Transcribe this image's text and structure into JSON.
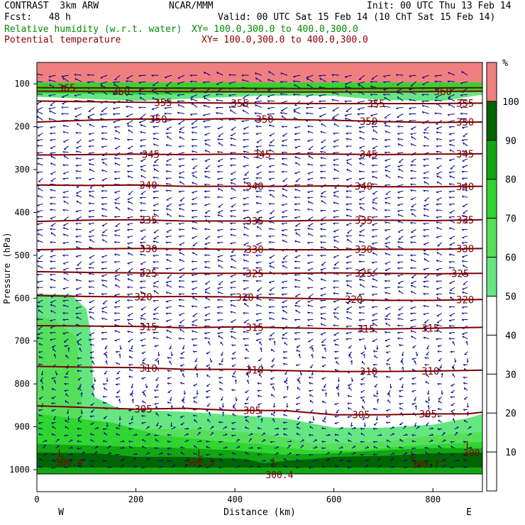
{
  "header": {
    "model": "CONTRAST  3km ARW",
    "org": "NCAR/MMM",
    "init": "Init: 00 UTC Thu 13 Feb 14",
    "fcst": "Fcst:   48 h",
    "valid": "Valid: 00 UTC Sat 15 Feb 14 (10 ChT Sat 15 Feb 14)",
    "rh_label": "Relative humidity (w.r.t. water)",
    "rh_xy": "XY= 100.0,300.0 to 400.0,300.0",
    "theta_label": "Potential temperature",
    "theta_xy": "XY= 100.0,300.0 to 400.0,300.0"
  },
  "colors": {
    "rh_label": "#008c00",
    "theta_label": "#8b0000",
    "theta_line": "#7a0000",
    "wind_arrow": "#00008b"
  },
  "chart_data": {
    "type": "cross-section",
    "xlabel": "Distance (km)",
    "ylabel": "Pressure (hPa)",
    "xlim": [
      0,
      900
    ],
    "ylim": [
      1010,
      50
    ],
    "x_ticks": [
      0,
      200,
      400,
      600,
      800
    ],
    "y_ticks": [
      100,
      200,
      300,
      400,
      500,
      600,
      700,
      800,
      900,
      1000
    ],
    "x_end_labels": {
      "left": "W",
      "right": "E"
    },
    "colorbar": {
      "unit": "%",
      "ticks": [
        10,
        20,
        30,
        40,
        50,
        60,
        70,
        80,
        90,
        100
      ],
      "bands": [
        {
          "from": 0,
          "to": 50,
          "color": "#ffffff"
        },
        {
          "from": 50,
          "to": 60,
          "color": "#66e680"
        },
        {
          "from": 60,
          "to": 70,
          "color": "#56e05a"
        },
        {
          "from": 70,
          "to": 80,
          "color": "#2fd62f"
        },
        {
          "from": 80,
          "to": 90,
          "color": "#12a612"
        },
        {
          "from": 90,
          "to": 100,
          "color": "#006400"
        },
        {
          "from": 100,
          "to": 110,
          "color": "#f08080"
        }
      ]
    },
    "theta_contours": [
      {
        "value": 305,
        "points": [
          [
            0,
            851
          ],
          [
            200,
            859
          ],
          [
            300,
            857
          ],
          [
            400,
            862
          ],
          [
            500,
            862
          ],
          [
            600,
            872
          ],
          [
            700,
            872
          ],
          [
            800,
            870
          ],
          [
            870,
            870
          ],
          [
            900,
            866
          ]
        ],
        "labels": [
          [
            215,
            "305"
          ],
          [
            435,
            "305"
          ],
          [
            655,
            "305"
          ],
          [
            790,
            "305"
          ]
        ]
      },
      {
        "value": 310,
        "points": [
          [
            0,
            759
          ],
          [
            100,
            761
          ],
          [
            200,
            762
          ],
          [
            300,
            766
          ],
          [
            400,
            766
          ],
          [
            500,
            769
          ],
          [
            600,
            771
          ],
          [
            700,
            771
          ],
          [
            800,
            770
          ],
          [
            900,
            768
          ]
        ],
        "labels": [
          [
            225,
            "310"
          ],
          [
            440,
            "310"
          ],
          [
            670,
            "310"
          ],
          [
            795,
            "310"
          ]
        ]
      },
      {
        "value": 315,
        "points": [
          [
            0,
            664
          ],
          [
            100,
            665
          ],
          [
            200,
            666
          ],
          [
            300,
            669
          ],
          [
            400,
            667
          ],
          [
            500,
            669
          ],
          [
            600,
            671
          ],
          [
            700,
            672
          ],
          [
            800,
            670
          ],
          [
            900,
            668
          ]
        ],
        "labels": [
          [
            225,
            "315"
          ],
          [
            440,
            "315"
          ],
          [
            665,
            "315"
          ],
          [
            795,
            "315"
          ]
        ]
      },
      {
        "value": 320,
        "points": [
          [
            0,
            594
          ],
          [
            100,
            596
          ],
          [
            200,
            597
          ],
          [
            300,
            596
          ],
          [
            400,
            597
          ],
          [
            500,
            600
          ],
          [
            600,
            602
          ],
          [
            700,
            605
          ],
          [
            800,
            605
          ],
          [
            900,
            603
          ]
        ],
        "labels": [
          [
            215,
            "320"
          ],
          [
            420,
            "320"
          ],
          [
            640,
            "320"
          ],
          [
            865,
            "320"
          ]
        ]
      },
      {
        "value": 325,
        "points": [
          [
            0,
            538
          ],
          [
            100,
            540
          ],
          [
            200,
            541
          ],
          [
            300,
            542
          ],
          [
            400,
            542
          ],
          [
            500,
            542
          ],
          [
            600,
            541
          ],
          [
            700,
            542
          ],
          [
            800,
            543
          ],
          [
            900,
            542
          ]
        ],
        "labels": [
          [
            225,
            "325"
          ],
          [
            440,
            "325"
          ],
          [
            660,
            "325"
          ],
          [
            855,
            "325"
          ]
        ]
      },
      {
        "value": 330,
        "points": [
          [
            0,
            487
          ],
          [
            100,
            485
          ],
          [
            200,
            484
          ],
          [
            300,
            485
          ],
          [
            400,
            486
          ],
          [
            500,
            487
          ],
          [
            600,
            487
          ],
          [
            700,
            486
          ],
          [
            800,
            486
          ],
          [
            900,
            484
          ]
        ],
        "labels": [
          [
            225,
            "330"
          ],
          [
            440,
            "330"
          ],
          [
            660,
            "330"
          ],
          [
            865,
            "330"
          ]
        ]
      },
      {
        "value": 335,
        "points": [
          [
            0,
            421
          ],
          [
            100,
            418
          ],
          [
            200,
            417
          ],
          [
            300,
            420
          ],
          [
            400,
            420
          ],
          [
            500,
            420
          ],
          [
            600,
            418
          ],
          [
            700,
            418
          ],
          [
            800,
            419
          ],
          [
            900,
            417
          ]
        ],
        "labels": [
          [
            225,
            "335"
          ],
          [
            440,
            "335"
          ],
          [
            660,
            "335"
          ],
          [
            865,
            "335"
          ]
        ]
      },
      {
        "value": 340,
        "points": [
          [
            0,
            336
          ],
          [
            100,
            337
          ],
          [
            200,
            336
          ],
          [
            300,
            339
          ],
          [
            400,
            339
          ],
          [
            500,
            339
          ],
          [
            600,
            338
          ],
          [
            700,
            340
          ],
          [
            800,
            340
          ],
          [
            900,
            339
          ]
        ],
        "labels": [
          [
            225,
            "340"
          ],
          [
            440,
            "340"
          ],
          [
            660,
            "340"
          ],
          [
            865,
            "340"
          ]
        ]
      },
      {
        "value": 345,
        "points": [
          [
            0,
            266
          ],
          [
            100,
            265
          ],
          [
            200,
            264
          ],
          [
            300,
            265
          ],
          [
            400,
            264
          ],
          [
            500,
            264
          ],
          [
            600,
            264
          ],
          [
            700,
            265
          ],
          [
            800,
            264
          ],
          [
            900,
            263
          ]
        ],
        "labels": [
          [
            230,
            "345"
          ],
          [
            455,
            "345"
          ],
          [
            670,
            "345"
          ],
          [
            865,
            "345"
          ]
        ]
      },
      {
        "value": 350,
        "points": [
          [
            0,
            189
          ],
          [
            100,
            185
          ],
          [
            200,
            182
          ],
          [
            300,
            183
          ],
          [
            400,
            181
          ],
          [
            500,
            183
          ],
          [
            600,
            185
          ],
          [
            700,
            188
          ],
          [
            800,
            190
          ],
          [
            900,
            189
          ]
        ],
        "labels": [
          [
            245,
            "350"
          ],
          [
            460,
            "350"
          ],
          [
            670,
            "350"
          ],
          [
            865,
            "350"
          ]
        ]
      },
      {
        "value": 355,
        "points": [
          [
            0,
            140
          ],
          [
            200,
            143
          ],
          [
            400,
            145
          ],
          [
            600,
            146
          ],
          [
            800,
            146
          ],
          [
            900,
            145
          ]
        ],
        "labels": [
          [
            255,
            "355"
          ],
          [
            410,
            "355"
          ],
          [
            685,
            "355"
          ],
          [
            865,
            "355"
          ]
        ]
      },
      {
        "value": 360,
        "points": [
          [
            0,
            117
          ],
          [
            300,
            118
          ],
          [
            500,
            119
          ],
          [
            700,
            119
          ],
          [
            900,
            117
          ]
        ],
        "labels": [
          [
            170,
            "360"
          ],
          [
            820,
            "360"
          ]
        ]
      },
      {
        "value": 365,
        "points": [
          [
            0,
            109
          ],
          [
            300,
            110
          ],
          [
            600,
            111
          ],
          [
            900,
            109
          ]
        ],
        "labels": [
          [
            60,
            "365"
          ]
        ]
      }
    ],
    "rh_regions": [
      {
        "rh": 50,
        "points": [
          [
            0,
            590
          ],
          [
            70,
            592
          ],
          [
            100,
            625
          ],
          [
            110,
            690
          ],
          [
            115,
            830
          ],
          [
            170,
            860
          ],
          [
            300,
            865
          ],
          [
            500,
            880
          ],
          [
            600,
            902
          ],
          [
            700,
            902
          ],
          [
            800,
            895
          ],
          [
            870,
            880
          ],
          [
            900,
            870
          ],
          [
            900,
            1010
          ],
          [
            0,
            1010
          ]
        ]
      },
      {
        "rh": 60,
        "points": [
          [
            0,
            640
          ],
          [
            40,
            655
          ],
          [
            80,
            690
          ],
          [
            95,
            900
          ],
          [
            200,
            905
          ],
          [
            300,
            905
          ],
          [
            450,
            915
          ],
          [
            520,
            930
          ],
          [
            560,
            940
          ],
          [
            700,
            935
          ],
          [
            800,
            920
          ],
          [
            900,
            912
          ],
          [
            900,
            1010
          ],
          [
            0,
            1010
          ]
        ]
      },
      {
        "rh": 70,
        "points": [
          [
            0,
            870
          ],
          [
            150,
            890
          ],
          [
            250,
            920
          ],
          [
            380,
            935
          ],
          [
            450,
            940
          ],
          [
            550,
            955
          ],
          [
            650,
            955
          ],
          [
            750,
            945
          ],
          [
            900,
            935
          ],
          [
            900,
            1010
          ],
          [
            0,
            1010
          ]
        ]
      },
      {
        "rh": 80,
        "points": [
          [
            0,
            940
          ],
          [
            150,
            945
          ],
          [
            300,
            950
          ],
          [
            400,
            955
          ],
          [
            500,
            965
          ],
          [
            600,
            962
          ],
          [
            700,
            955
          ],
          [
            800,
            950
          ],
          [
            900,
            950
          ],
          [
            900,
            1010
          ],
          [
            0,
            1010
          ]
        ]
      },
      {
        "rh": 90,
        "points": [
          [
            0,
            960
          ],
          [
            120,
            962
          ],
          [
            200,
            970
          ],
          [
            300,
            970
          ],
          [
            420,
            975
          ],
          [
            460,
            985
          ],
          [
            500,
            980
          ],
          [
            560,
            975
          ],
          [
            600,
            970
          ],
          [
            700,
            968
          ],
          [
            800,
            962
          ],
          [
            900,
            960
          ],
          [
            900,
            995
          ],
          [
            0,
            995
          ]
        ]
      },
      {
        "rh": 50,
        "points": [
          [
            0,
            95
          ],
          [
            900,
            95
          ],
          [
            900,
            125
          ],
          [
            820,
            140
          ],
          [
            700,
            138
          ],
          [
            600,
            128
          ],
          [
            450,
            128
          ],
          [
            300,
            135
          ],
          [
            200,
            140
          ],
          [
            0,
            130
          ]
        ]
      },
      {
        "rh": 70,
        "points": [
          [
            0,
            95
          ],
          [
            900,
            95
          ],
          [
            900,
            115
          ],
          [
            700,
            118
          ],
          [
            450,
            118
          ],
          [
            250,
            125
          ],
          [
            0,
            122
          ]
        ]
      },
      {
        "rh": 100,
        "points": [
          [
            0,
            50
          ],
          [
            900,
            50
          ],
          [
            900,
            97
          ],
          [
            0,
            97
          ]
        ]
      }
    ],
    "pressure_labels": [
      {
        "text": "L",
        "x": 48,
        "p": 961
      },
      {
        "text": "300.4",
        "x": 65,
        "p": 983
      },
      {
        "text": "L",
        "x": 330,
        "p": 961
      },
      {
        "text": "300.3",
        "x": 330,
        "p": 983
      },
      {
        "text": "L",
        "x": 480,
        "p": 981
      },
      {
        "text": "300.4",
        "x": 490,
        "p": 1012
      },
      {
        "text": "L",
        "x": 760,
        "p": 966
      },
      {
        "text": "300.7",
        "x": 785,
        "p": 988
      },
      {
        "text": "L",
        "x": 872,
        "p": 942
      },
      {
        "text": "300",
        "x": 878,
        "p": 960
      }
    ],
    "wind_barbs": "grid of arrows, predominantly westward aloft; surface flow variable"
  }
}
